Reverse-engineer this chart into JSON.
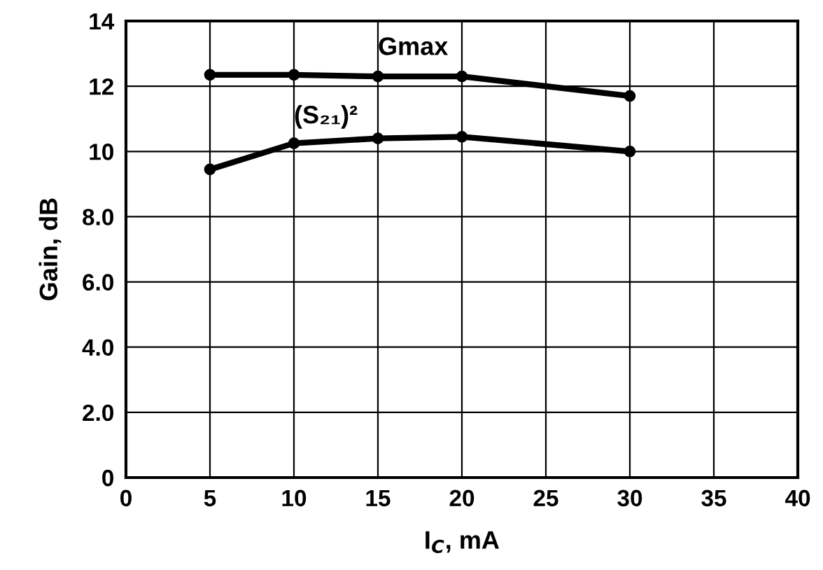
{
  "chart_data": {
    "type": "line",
    "xlabel": "I$_{C}$, mA",
    "ylabel": "Gain, dB",
    "x": [
      5,
      10,
      15,
      20,
      30
    ],
    "series": [
      {
        "name": "Gmax",
        "color": "#000000",
        "values": [
          12.35,
          12.35,
          12.3,
          12.3,
          11.7
        ]
      },
      {
        "name": "(S₂₁)²",
        "color": "#000000",
        "values": [
          9.45,
          10.25,
          10.4,
          10.45,
          10.0
        ]
      }
    ],
    "xlim": [
      0,
      40
    ],
    "xticks": [
      0,
      5,
      10,
      15,
      20,
      25,
      30,
      35,
      40
    ],
    "ylim": [
      0,
      14
    ],
    "yticks": [
      0,
      {
        "value": 2,
        "label": "2.0"
      },
      {
        "value": 4,
        "label": "4.0"
      },
      {
        "value": 6,
        "label": "6.0"
      },
      {
        "value": 8,
        "label": "8.0"
      },
      {
        "value": 10,
        "label": "10"
      },
      {
        "value": 12,
        "label": "12"
      },
      14
    ],
    "grid": true,
    "legend": false,
    "marker": "circle",
    "line_style": "solid"
  }
}
